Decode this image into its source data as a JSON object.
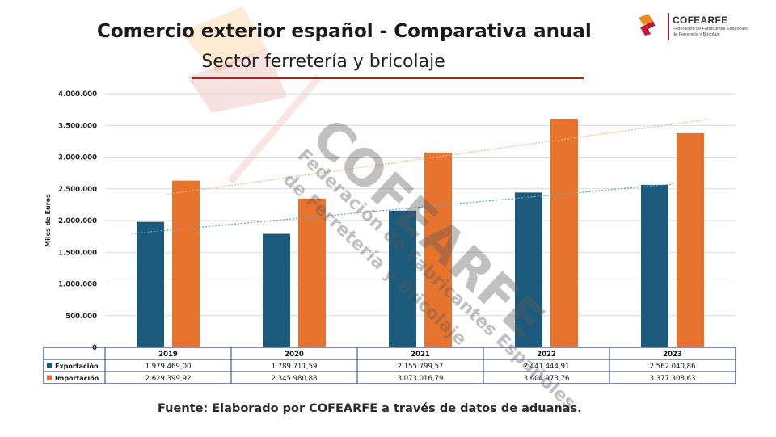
{
  "header": {
    "title": "Comercio exterior español - Comparativa anual",
    "subtitle": "Sector ferretería y bricolaje"
  },
  "logo": {
    "name": "COFEARFE",
    "description_line1": "Federación de Fabricantes Españoles",
    "description_line2": "de Ferretería y Bricolaje"
  },
  "watermark": {
    "big": "COFEARFE",
    "line1": "Federación de Fabricantes Españoles",
    "line2": "de Ferretería y Bricolaje"
  },
  "footer": {
    "source": "Fuente: Elaborado por COFEARFE a través de datos de aduanas."
  },
  "colors": {
    "exportacion": "#1c5a7c",
    "importacion": "#e8732f",
    "table_border": "#2d3a73",
    "accent_red": "#c0182c",
    "logo_orange": "#f08a1e"
  },
  "chart_data": {
    "type": "bar",
    "categories": [
      "2019",
      "2020",
      "2021",
      "2022",
      "2023"
    ],
    "series": [
      {
        "name": "Exportación",
        "values": [
          1979469.0,
          1789711.59,
          2155799.57,
          2441444.91,
          2562040.86
        ],
        "labels": [
          "1.979.469,00",
          "1.789.711,59",
          "2.155.799,57",
          "2.441.444,91",
          "2.562.040,86"
        ],
        "color": "#1c5a7c",
        "trendline": true
      },
      {
        "name": "Importación",
        "values": [
          2629399.92,
          2345980.88,
          3073016.79,
          3604973.76,
          3377308.63
        ],
        "labels": [
          "2.629.399,92",
          "2.345.980,88",
          "3.073.016,79",
          "3.604.973,76",
          "3.377.308,63"
        ],
        "color": "#e8732f",
        "trendline": true
      }
    ],
    "ylabel": "Miles de Euros",
    "ylim": [
      0,
      4000000
    ],
    "yticks": [
      0,
      500000,
      1000000,
      1500000,
      2000000,
      2500000,
      3000000,
      3500000,
      4000000
    ],
    "ytick_labels": [
      "0",
      "500.000",
      "1.000.000",
      "1.500.000",
      "2.000.000",
      "2.500.000",
      "3.000.000",
      "3.500.000",
      "4.000.000"
    ],
    "grid": true,
    "legend": "data-table"
  }
}
